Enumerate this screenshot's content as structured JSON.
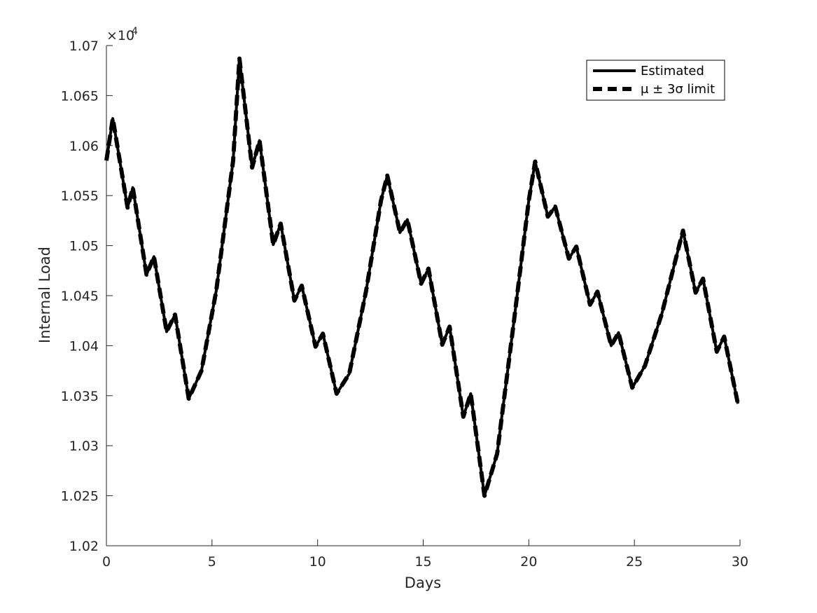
{
  "chart_data": {
    "type": "line",
    "xlabel": "Days",
    "ylabel": "Internal Load",
    "exponent_label": "×10",
    "exponent_power": "4",
    "xlim": [
      0,
      30
    ],
    "ylim": [
      1.02,
      1.07
    ],
    "x_ticks": [
      0,
      5,
      10,
      15,
      20,
      25,
      30
    ],
    "x_tick_labels": [
      "0",
      "5",
      "10",
      "15",
      "20",
      "25",
      "30"
    ],
    "y_ticks": [
      1.02,
      1.025,
      1.03,
      1.035,
      1.04,
      1.045,
      1.05,
      1.055,
      1.06,
      1.065,
      1.07
    ],
    "y_tick_labels": [
      "1.02",
      "1.025",
      "1.03",
      "1.035",
      "1.04",
      "1.045",
      "1.05",
      "1.055",
      "1.06",
      "1.065",
      "1.07"
    ],
    "legend_position": "top-right",
    "grid": false,
    "series": [
      {
        "name": "Estimated",
        "style": "solid",
        "color": "#000000",
        "x": [
          0,
          0.3,
          1.0,
          1.25,
          1.9,
          2.25,
          2.85,
          3.25,
          3.9,
          4.5,
          5.2,
          6.0,
          6.3,
          6.9,
          7.25,
          7.9,
          8.25,
          8.9,
          9.25,
          9.9,
          10.25,
          10.9,
          11.5,
          12.3,
          13.0,
          13.3,
          13.9,
          14.25,
          14.9,
          15.25,
          15.9,
          16.25,
          16.9,
          17.25,
          17.9,
          18.5,
          19.3,
          20.0,
          20.3,
          20.9,
          21.25,
          21.9,
          22.25,
          22.9,
          23.25,
          23.9,
          24.25,
          24.9,
          25.5,
          26.3,
          27.0,
          27.3,
          27.9,
          28.25,
          28.9,
          29.25,
          29.9
        ],
        "y": [
          1.0585,
          1.0627,
          1.0538,
          1.0558,
          1.0471,
          1.0489,
          1.0414,
          1.0431,
          1.0347,
          1.0375,
          1.0455,
          1.0585,
          1.0687,
          1.0578,
          1.0605,
          1.0501,
          1.0522,
          1.0445,
          1.046,
          1.0399,
          1.0412,
          1.0352,
          1.0372,
          1.0455,
          1.0545,
          1.057,
          1.0513,
          1.0526,
          1.0462,
          1.0477,
          1.0401,
          1.0419,
          1.0329,
          1.0352,
          1.025,
          1.0292,
          1.0425,
          1.0545,
          1.0584,
          1.0529,
          1.0539,
          1.0487,
          1.0499,
          1.0441,
          1.0454,
          1.04,
          1.0413,
          1.0358,
          1.038,
          1.0432,
          1.049,
          1.0515,
          1.0453,
          1.0467,
          1.0394,
          1.0409,
          1.0342
        ]
      },
      {
        "name": "μ ± 3σ limit",
        "style": "dashed",
        "color": "#000000",
        "x": [
          0,
          0.3,
          1.0,
          1.25,
          1.9,
          2.25,
          2.85,
          3.25,
          3.9,
          4.5,
          5.2,
          6.0,
          6.3,
          6.9,
          7.25,
          7.9,
          8.25,
          8.9,
          9.25,
          9.9,
          10.25,
          10.9,
          11.5,
          12.3,
          13.0,
          13.3,
          13.9,
          14.25,
          14.9,
          15.25,
          15.9,
          16.25,
          16.9,
          17.25,
          17.9,
          18.5,
          19.3,
          20.0,
          20.3,
          20.9,
          21.25,
          21.9,
          22.25,
          22.9,
          23.25,
          23.9,
          24.25,
          24.9,
          25.5,
          26.3,
          27.0,
          27.3,
          27.9,
          28.25,
          28.9,
          29.25,
          29.9
        ],
        "y": [
          1.0585,
          1.0627,
          1.0538,
          1.0558,
          1.0471,
          1.0489,
          1.0414,
          1.0431,
          1.0347,
          1.0375,
          1.0455,
          1.0585,
          1.0687,
          1.0578,
          1.0605,
          1.0501,
          1.0522,
          1.0445,
          1.046,
          1.0399,
          1.0412,
          1.0352,
          1.0372,
          1.0455,
          1.0545,
          1.057,
          1.0513,
          1.0526,
          1.0462,
          1.0477,
          1.0401,
          1.0419,
          1.0329,
          1.0352,
          1.025,
          1.0292,
          1.0425,
          1.0545,
          1.0584,
          1.0529,
          1.0539,
          1.0487,
          1.0499,
          1.0441,
          1.0454,
          1.04,
          1.0413,
          1.0358,
          1.038,
          1.0432,
          1.049,
          1.0515,
          1.0453,
          1.0467,
          1.0394,
          1.0409,
          1.0342
        ]
      }
    ],
    "legend_entries": [
      "Estimated",
      "μ ± 3σ limit"
    ]
  }
}
